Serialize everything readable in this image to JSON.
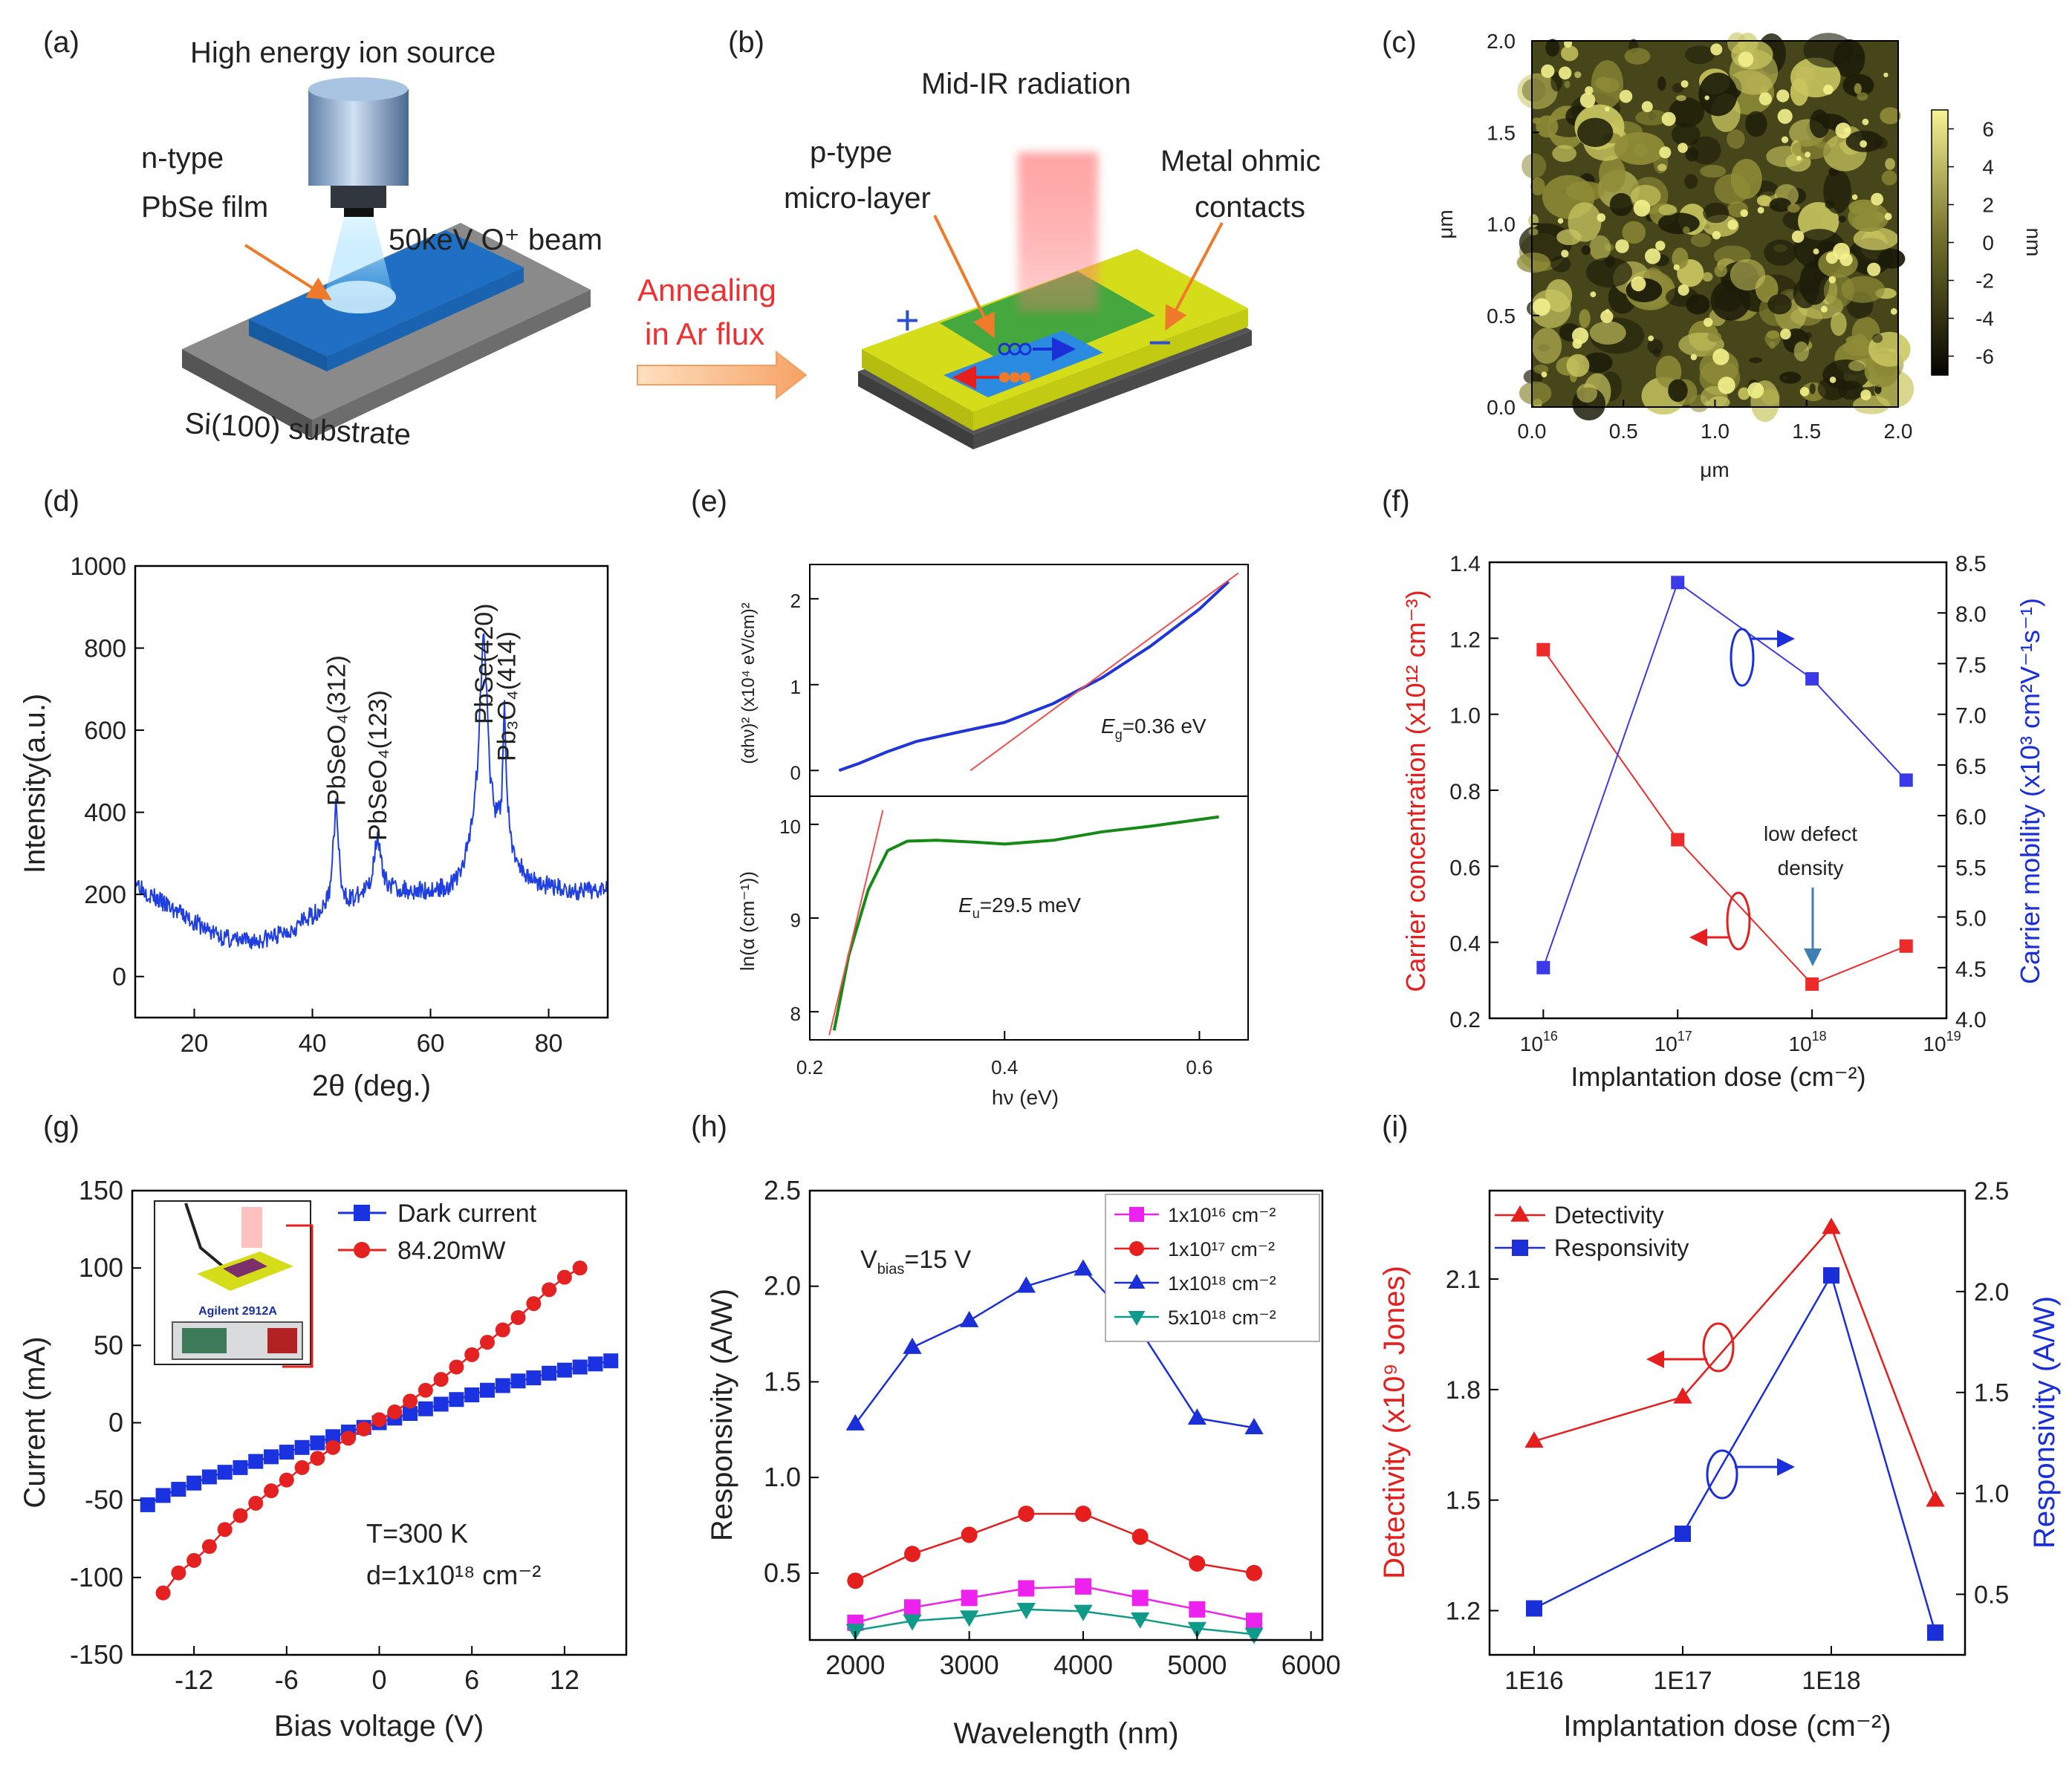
{
  "figure": {
    "panel_a": {
      "label": "(a)",
      "title": "High energy ion source",
      "film_label_1": "n-type",
      "film_label_2": "PbSe film",
      "beam_label": "50keV O⁺ beam",
      "substrate_label": "Si(100) substrate"
    },
    "arrow_label_1": "Annealing",
    "arrow_label_2": "in Ar flux",
    "panel_b": {
      "label": "(b)",
      "title": "Mid-IR radiation",
      "layer_label_1": "p-type",
      "layer_label_2": "micro-layer",
      "contact_label_1": "Metal ohmic",
      "contact_label_2": "contacts",
      "plus_sign": "+",
      "minus_sign": "−"
    },
    "panel_c": {
      "label": "(c)",
      "xlabel": "μm",
      "ylabel": "μm",
      "colorbar_unit": "nm",
      "colorbar_ticks": [
        "6",
        "4",
        "2",
        "0",
        "-2",
        "-4",
        "-6"
      ],
      "colors": {
        "low": "#161606",
        "high": "#f3f18c"
      }
    },
    "panel_d": {
      "label": "(d)"
    },
    "panel_e": {
      "label": "(e)"
    },
    "panel_f": {
      "label": "(f)"
    },
    "panel_g": {
      "label": "(g)",
      "instrument": "Agilent 2912A"
    },
    "panel_h": {
      "label": "(h)"
    },
    "panel_i": {
      "label": "(i)"
    }
  },
  "chart_data": [
    {
      "id": "c",
      "type": "heatmap",
      "xlabel": "μm",
      "ylabel": "μm",
      "xlim": [
        0,
        2.0
      ],
      "ylim": [
        0,
        2.0
      ],
      "xticks": [
        "0.0",
        "0.5",
        "1.0",
        "1.5",
        "2.0"
      ],
      "yticks": [
        "0.0",
        "0.5",
        "1.0",
        "1.5",
        "2.0"
      ],
      "colorbar": {
        "unit": "nm",
        "range": [
          -7,
          7
        ]
      }
    },
    {
      "id": "d",
      "type": "line",
      "xlabel": "2θ (deg.)",
      "ylabel": "Intensity(a.u.)",
      "xlim": [
        10,
        90
      ],
      "ylim": [
        -100,
        1000
      ],
      "xticks": [
        "20",
        "40",
        "60",
        "80"
      ],
      "yticks": [
        "0",
        "200",
        "400",
        "600",
        "800",
        "1000"
      ],
      "color": "#1f3fe0",
      "x": [
        10,
        12,
        15,
        18,
        22,
        25,
        28,
        31,
        34,
        37,
        40,
        42,
        43,
        44,
        45,
        47,
        49,
        50,
        51,
        52,
        54,
        57,
        60,
        63,
        65,
        66,
        67,
        68,
        68.5,
        69,
        69.5,
        70,
        71,
        72,
        72.5,
        73,
        74,
        76,
        79,
        82,
        85,
        88,
        90
      ],
      "values": [
        235,
        205,
        175,
        150,
        115,
        95,
        85,
        88,
        100,
        120,
        150,
        170,
        215,
        420,
        200,
        190,
        210,
        240,
        355,
        240,
        215,
        210,
        210,
        220,
        250,
        300,
        380,
        520,
        700,
        870,
        700,
        500,
        400,
        420,
        680,
        420,
        300,
        250,
        225,
        215,
        205,
        210,
        230
      ],
      "annotations": [
        "PbSeO₄(312)",
        "PbSeO₄(123)",
        "PbSe(420)",
        "Pb₃O₄(414)"
      ]
    },
    {
      "id": "e_top",
      "type": "line",
      "ylabel": "(αhν)² (x10⁴ eV/cm)²",
      "xlim": [
        0.2,
        0.65
      ],
      "ylim": [
        -0.3,
        2.4
      ],
      "yticks": [
        "0",
        "1",
        "2"
      ],
      "annotation": "E",
      "annotation_sub": "g",
      "annotation_rest": "=0.36 eV",
      "series": [
        {
          "color": "#2035d8",
          "x": [
            0.23,
            0.25,
            0.28,
            0.31,
            0.35,
            0.4,
            0.45,
            0.5,
            0.55,
            0.6,
            0.63
          ],
          "values": [
            0.0,
            0.08,
            0.22,
            0.34,
            0.44,
            0.56,
            0.78,
            1.08,
            1.45,
            1.88,
            2.2
          ]
        },
        {
          "color": "#f05050",
          "x": [
            0.365,
            0.64
          ],
          "values": [
            0.0,
            2.3
          ]
        }
      ]
    },
    {
      "id": "e_bottom",
      "type": "line",
      "xlabel": "hν (eV)",
      "ylabel": "ln(α (cm⁻¹))",
      "xlim": [
        0.2,
        0.65
      ],
      "ylim": [
        7.7,
        10.3
      ],
      "xticks": [
        "0.2",
        "0.4",
        "0.6"
      ],
      "yticks": [
        "8",
        "9",
        "10"
      ],
      "annotation": "E",
      "annotation_sub": "u",
      "annotation_rest": "=29.5 meV",
      "series": [
        {
          "color": "#168a16",
          "x": [
            0.225,
            0.24,
            0.26,
            0.28,
            0.3,
            0.33,
            0.37,
            0.4,
            0.45,
            0.5,
            0.55,
            0.62
          ],
          "values": [
            7.8,
            8.6,
            9.3,
            9.72,
            9.82,
            9.83,
            9.81,
            9.79,
            9.83,
            9.92,
            9.98,
            10.08
          ]
        },
        {
          "color": "#f05050",
          "x": [
            0.22,
            0.275
          ],
          "values": [
            7.75,
            10.15
          ]
        }
      ]
    },
    {
      "id": "f",
      "type": "line",
      "xlabel": "Implantation dose (cm⁻²)",
      "ylabel_left": "Carrier concentration (x10¹² cm⁻³)",
      "ylabel_right": "Carrier mobility (x10³ cm²V⁻¹s⁻¹)",
      "xlim": [
        15.6,
        19
      ],
      "ylim_left": [
        0.2,
        1.4
      ],
      "ylim_right": [
        4.0,
        8.5
      ],
      "xtick_bases": [
        "10",
        "10",
        "10",
        "10"
      ],
      "xtick_exps": [
        "16",
        "17",
        "18",
        "19"
      ],
      "yticks_left": [
        "0.2",
        "0.4",
        "0.6",
        "0.8",
        "1.0",
        "1.2",
        "1.4"
      ],
      "yticks_right": [
        "4.0",
        "4.5",
        "5.0",
        "5.5",
        "6.0",
        "6.5",
        "7.0",
        "7.5",
        "8.0",
        "8.5"
      ],
      "annotation": [
        "low defect",
        "density"
      ],
      "series": [
        {
          "axis": "left",
          "color": "#ee2b2b",
          "x_log10": [
            16,
            17,
            18,
            18.7
          ],
          "values": [
            1.17,
            0.67,
            0.29,
            0.39
          ]
        },
        {
          "axis": "right",
          "color": "#3a3ae8",
          "x_log10": [
            16,
            17,
            18,
            18.7
          ],
          "values": [
            4.5,
            8.3,
            7.35,
            6.35
          ]
        }
      ]
    },
    {
      "id": "g",
      "type": "scatter",
      "xlabel": "Bias voltage (V)",
      "ylabel": "Current (mA)",
      "xlim": [
        -16,
        16
      ],
      "ylim": [
        -150,
        150
      ],
      "xticks": [
        "-12",
        "-6",
        "0",
        "6",
        "12"
      ],
      "yticks": [
        "-150",
        "-100",
        "-50",
        "0",
        "50",
        "100",
        "150"
      ],
      "annotation_1": "T=300 K",
      "annotation_2": "d=1x10¹⁸ cm⁻²",
      "series": [
        {
          "name": "Dark current",
          "color": "#1a32e0",
          "marker": "square",
          "x": [
            -15,
            -14,
            -13,
            -12,
            -11,
            -10,
            -9,
            -8,
            -7,
            -6,
            -5,
            -4,
            -3,
            -2,
            -1,
            0,
            1,
            2,
            3,
            4,
            5,
            6,
            7,
            8,
            9,
            10,
            11,
            12,
            13,
            14,
            15
          ],
          "values": [
            -53,
            -47,
            -43,
            -39,
            -35,
            -32,
            -29,
            -25,
            -22,
            -19,
            -16,
            -13,
            -9,
            -6,
            -3,
            0,
            3,
            6,
            9,
            12,
            15,
            18,
            21,
            24,
            27,
            29,
            32,
            34,
            36,
            38,
            40
          ]
        },
        {
          "name": "84.20mW",
          "color": "#e52222",
          "marker": "circle",
          "x": [
            -14,
            -13,
            -12,
            -11,
            -10,
            -9,
            -8,
            -7,
            -6,
            -5,
            -4,
            -3,
            -2,
            -1,
            0,
            1,
            2,
            3,
            4,
            5,
            6,
            7,
            8,
            9,
            10,
            11,
            12,
            13
          ],
          "values": [
            -110,
            -97,
            -89,
            -80,
            -69,
            -60,
            -52,
            -44,
            -37,
            -29,
            -23,
            -16,
            -10,
            -4,
            2,
            7,
            14,
            21,
            28,
            36,
            44,
            52,
            60,
            68,
            77,
            86,
            94,
            100
          ]
        }
      ]
    },
    {
      "id": "h",
      "type": "line",
      "xlabel": "Wavelength (nm)",
      "ylabel": "Responsivity (A/W)",
      "xlim": [
        1600,
        6100
      ],
      "ylim": [
        0.15,
        2.5
      ],
      "xticks": [
        "2000",
        "3000",
        "4000",
        "5000",
        "6000"
      ],
      "yticks": [
        "0.5",
        "1.0",
        "1.5",
        "2.0",
        "2.5"
      ],
      "annotation": "V",
      "annotation_sub": "bias",
      "annotation_rest": "=15 V",
      "categories": [
        2000,
        2500,
        3000,
        3500,
        4000,
        4500,
        5000,
        5500
      ],
      "series": [
        {
          "name": "1x10¹⁶ cm⁻²",
          "color": "#ee22ee",
          "marker": "square",
          "values": [
            0.24,
            0.32,
            0.37,
            0.42,
            0.43,
            0.37,
            0.31,
            0.25
          ]
        },
        {
          "name": "1x10¹⁷ cm⁻²",
          "color": "#e51e1e",
          "marker": "circle",
          "values": [
            0.46,
            0.6,
            0.7,
            0.81,
            0.81,
            0.69,
            0.55,
            0.5
          ]
        },
        {
          "name": "1x10¹⁸ cm⁻²",
          "color": "#1a2fd8",
          "marker": "triangle",
          "values": [
            1.28,
            1.68,
            1.82,
            2.0,
            2.09,
            1.77,
            1.31,
            1.26
          ]
        },
        {
          "name": "5x10¹⁸ cm⁻²",
          "color": "#0f9a8a",
          "marker": "triangle-down",
          "values": [
            0.2,
            0.25,
            0.27,
            0.31,
            0.3,
            0.26,
            0.21,
            0.18
          ]
        }
      ]
    },
    {
      "id": "i",
      "type": "line",
      "xlabel": "Implantation dose (cm⁻²)",
      "ylabel_left": "Detectivity (x10⁹ Jones)",
      "ylabel_right": "Responsivity (A/W)",
      "xlim": [
        15.7,
        18.9
      ],
      "ylim_left": [
        1.08,
        2.34
      ],
      "ylim_right": [
        0.2,
        2.5
      ],
      "xticks": [
        "1E16",
        "1E17",
        "1E18"
      ],
      "yticks_left": [
        "1.2",
        "1.5",
        "1.8",
        "2.1"
      ],
      "yticks_right": [
        "0.5",
        "1.0",
        "1.5",
        "2.0",
        "2.5"
      ],
      "series": [
        {
          "name": "Detectivity",
          "axis": "left",
          "color": "#e51e1e",
          "marker": "triangle",
          "x_log10": [
            16,
            17,
            18,
            18.7
          ],
          "values": [
            1.66,
            1.78,
            2.24,
            1.5
          ]
        },
        {
          "name": "Responsivity",
          "axis": "right",
          "color": "#1a2fd8",
          "marker": "square",
          "x_log10": [
            16,
            17,
            18,
            18.7
          ],
          "values": [
            0.43,
            0.8,
            2.08,
            0.31
          ]
        }
      ]
    }
  ]
}
